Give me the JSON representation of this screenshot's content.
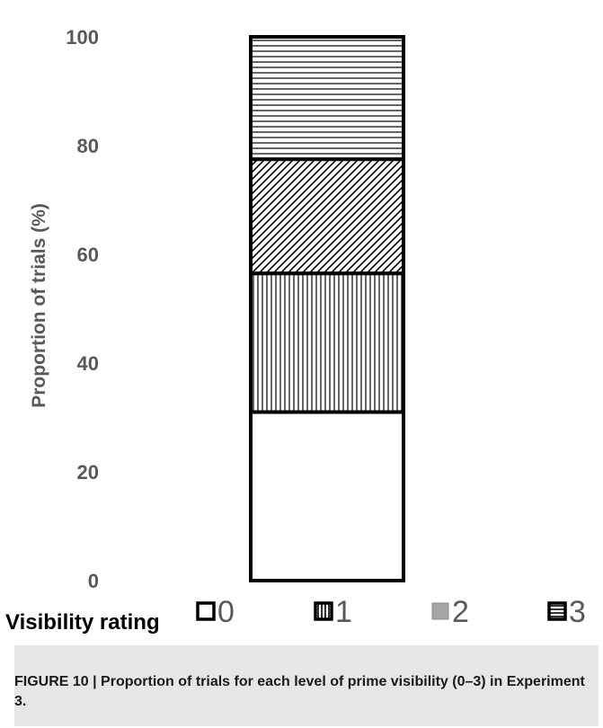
{
  "chart_data": {
    "type": "bar",
    "stacked": true,
    "categories": [
      ""
    ],
    "series": [
      {
        "name": "0",
        "values": [
          31
        ]
      },
      {
        "name": "1",
        "values": [
          25.5
        ]
      },
      {
        "name": "2",
        "values": [
          21
        ]
      },
      {
        "name": "3",
        "values": [
          22.5
        ]
      }
    ],
    "ylim": [
      0,
      100
    ],
    "yticks": [
      0,
      20,
      40,
      60,
      80,
      100
    ],
    "ylabel": "Proportion of trials (%)",
    "legend_title": "Visibility rating",
    "legend_position": "bottom",
    "patterns": [
      "none",
      "vertical-lines",
      "diagonal-lines",
      "horizontal-lines"
    ],
    "grid": false
  },
  "caption": {
    "text": "FIGURE 10 | Proportion of trials for each level of prime visibility (0–3) in Experiment 3."
  },
  "colors": {
    "text_gray": "#595959",
    "bar_outline": "#000000",
    "caption_background": "#e6e6e6",
    "legend_2_fill": "#a6a6a6"
  }
}
